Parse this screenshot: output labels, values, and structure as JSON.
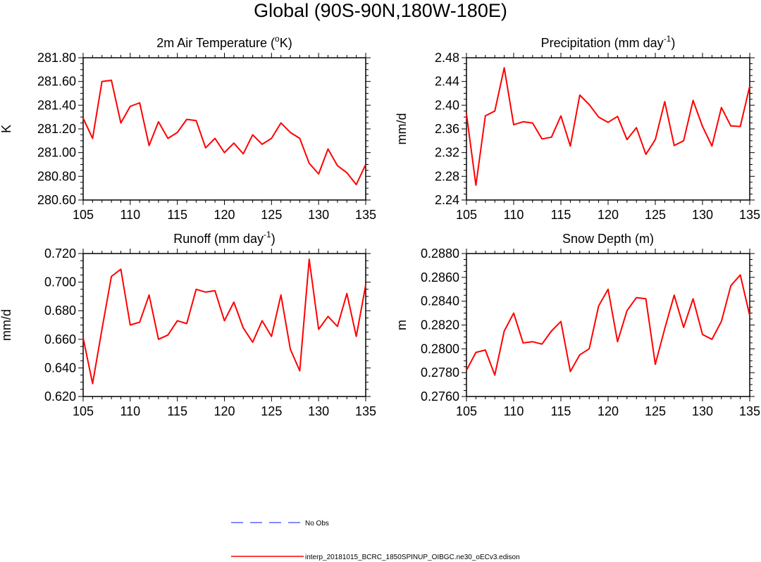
{
  "figure": {
    "title": "Global (90S-90N,180W-180E)",
    "legend": [
      {
        "label": "No Obs",
        "color": "#5a64ff",
        "style": "dashed"
      },
      {
        "label": "interp_20181015_BCRC_1850SPINUP_OIBGC.ne30_oECv3.edison",
        "color": "#ff0000",
        "style": "solid"
      }
    ]
  },
  "chart_data": [
    {
      "type": "line",
      "title": "2m Air Temperature (",
      "title_sup": "o",
      "title_suffix": "K)",
      "ylabel": "K",
      "xlim": [
        105,
        135
      ],
      "ylim": [
        280.6,
        281.8
      ],
      "xticks": [
        105,
        110,
        115,
        120,
        125,
        130,
        135
      ],
      "yticks": [
        "280.60",
        "280.80",
        "281.00",
        "281.20",
        "281.40",
        "281.60",
        "281.80"
      ],
      "color": "#ff0000",
      "x": [
        105,
        106,
        107,
        108,
        109,
        110,
        111,
        112,
        113,
        114,
        115,
        116,
        117,
        118,
        119,
        120,
        121,
        122,
        123,
        124,
        125,
        126,
        127,
        128,
        129,
        130,
        131,
        132,
        133,
        134,
        135
      ],
      "y": [
        281.29,
        281.12,
        281.6,
        281.61,
        281.25,
        281.39,
        281.42,
        281.06,
        281.26,
        281.12,
        281.17,
        281.28,
        281.27,
        281.04,
        281.12,
        281.0,
        281.08,
        280.99,
        281.15,
        281.07,
        281.12,
        281.25,
        281.17,
        281.12,
        280.91,
        280.82,
        281.03,
        280.89,
        280.83,
        280.73,
        280.9
      ]
    },
    {
      "type": "line",
      "title": "Precipitation (mm day",
      "title_sup": "-1",
      "title_suffix": ")",
      "ylabel": "mm/d",
      "xlim": [
        105,
        135
      ],
      "ylim": [
        2.24,
        2.48
      ],
      "xticks": [
        105,
        110,
        115,
        120,
        125,
        130,
        135
      ],
      "yticks": [
        "2.24",
        "2.28",
        "2.32",
        "2.36",
        "2.40",
        "2.44",
        "2.48"
      ],
      "color": "#ff0000",
      "x": [
        105,
        106,
        107,
        108,
        109,
        110,
        111,
        112,
        113,
        114,
        115,
        116,
        117,
        118,
        119,
        120,
        121,
        122,
        123,
        124,
        125,
        126,
        127,
        128,
        129,
        130,
        131,
        132,
        133,
        134,
        135
      ],
      "y": [
        2.385,
        2.265,
        2.382,
        2.39,
        2.463,
        2.367,
        2.372,
        2.37,
        2.343,
        2.346,
        2.382,
        2.331,
        2.417,
        2.401,
        2.38,
        2.371,
        2.381,
        2.342,
        2.362,
        2.317,
        2.342,
        2.406,
        2.332,
        2.34,
        2.408,
        2.364,
        2.331,
        2.396,
        2.365,
        2.364,
        2.432
      ]
    },
    {
      "type": "line",
      "title": "Runoff (mm day",
      "title_sup": "-1",
      "title_suffix": ")",
      "ylabel": "mm/d",
      "xlim": [
        105,
        135
      ],
      "ylim": [
        0.62,
        0.72
      ],
      "xticks": [
        105,
        110,
        115,
        120,
        125,
        130,
        135
      ],
      "yticks": [
        "0.620",
        "0.640",
        "0.660",
        "0.680",
        "0.700",
        "0.720"
      ],
      "color": "#ff0000",
      "x": [
        105,
        106,
        107,
        108,
        109,
        110,
        111,
        112,
        113,
        114,
        115,
        116,
        117,
        118,
        119,
        120,
        121,
        122,
        123,
        124,
        125,
        126,
        127,
        128,
        129,
        130,
        131,
        132,
        133,
        134,
        135
      ],
      "y": [
        0.661,
        0.629,
        0.667,
        0.704,
        0.709,
        0.67,
        0.672,
        0.691,
        0.66,
        0.663,
        0.673,
        0.671,
        0.695,
        0.693,
        0.694,
        0.673,
        0.686,
        0.668,
        0.658,
        0.673,
        0.662,
        0.691,
        0.653,
        0.638,
        0.716,
        0.667,
        0.676,
        0.669,
        0.692,
        0.662,
        0.698
      ]
    },
    {
      "type": "line",
      "title": "Snow Depth (m)",
      "title_sup": "",
      "title_suffix": "",
      "ylabel": "m",
      "xlim": [
        105,
        135
      ],
      "ylim": [
        0.276,
        0.288
      ],
      "xticks": [
        105,
        110,
        115,
        120,
        125,
        130,
        135
      ],
      "yticks": [
        "0.2760",
        "0.2780",
        "0.2800",
        "0.2820",
        "0.2840",
        "0.2860",
        "0.2880"
      ],
      "color": "#ff0000",
      "x": [
        105,
        106,
        107,
        108,
        109,
        110,
        111,
        112,
        113,
        114,
        115,
        116,
        117,
        118,
        119,
        120,
        121,
        122,
        123,
        124,
        125,
        126,
        127,
        128,
        129,
        130,
        131,
        132,
        133,
        134,
        135
      ],
      "y": [
        0.2782,
        0.2797,
        0.2799,
        0.2778,
        0.2815,
        0.283,
        0.2805,
        0.2806,
        0.2804,
        0.2815,
        0.2823,
        0.2781,
        0.2795,
        0.28,
        0.2836,
        0.285,
        0.2806,
        0.2832,
        0.2843,
        0.2842,
        0.2787,
        0.2817,
        0.2845,
        0.2818,
        0.2842,
        0.2812,
        0.2808,
        0.2823,
        0.2853,
        0.2862,
        0.2828
      ]
    }
  ]
}
